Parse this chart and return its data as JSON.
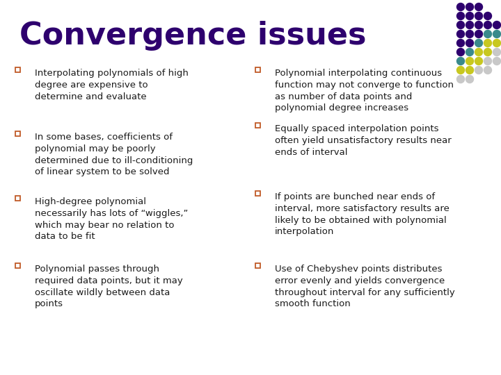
{
  "title": "Convergence issues",
  "title_color": "#2e006e",
  "title_fontsize": 32,
  "bg_color": "#ffffff",
  "bullet_color": "#c05a28",
  "text_color": "#1a1a1a",
  "left_bullets": [
    "Interpolating polynomials of high\ndegree are expensive to\ndetermine and evaluate",
    "In some bases, coefficients of\npolynomial may be poorly\ndetermined due to ill-conditioning\nof linear system to be solved",
    "High-degree polynomial\nnecessarily has lots of “wiggles,”\nwhich may bear no relation to\ndata to be fit",
    "Polynomial passes through\nrequired data points, but it may\noscillate wildly between data\npoints"
  ],
  "right_bullets": [
    "Polynomial interpolating continuous\nfunction may not converge to function\nas number of data points and\npolynomial degree increases",
    "Equally spaced interpolation points\noften yield unsatisfactory results near\nends of interval",
    "If points are bunched near ends of\ninterval, more satisfactory results are\nlikely to be obtained with polynomial\ninterpolation",
    "Use of Chebyshev points distributes\nerror evenly and yields convergence\nthroughout interval for any sufficiently\nsmooth function"
  ],
  "dot_grid": [
    [
      1,
      1,
      1,
      0,
      0
    ],
    [
      1,
      1,
      1,
      1,
      0
    ],
    [
      1,
      1,
      1,
      1,
      1
    ],
    [
      1,
      1,
      1,
      2,
      2
    ],
    [
      1,
      1,
      2,
      3,
      3
    ],
    [
      1,
      2,
      3,
      3,
      4
    ],
    [
      2,
      3,
      3,
      4,
      4
    ],
    [
      3,
      3,
      4,
      4,
      0
    ],
    [
      4,
      4,
      0,
      0,
      0
    ]
  ],
  "dot_color_map": {
    "0": null,
    "1": "#2e006e",
    "2": "#3a8a8c",
    "3": "#c8c820",
    "4": "#c8c8c8"
  },
  "font_family": "DejaVu Sans"
}
